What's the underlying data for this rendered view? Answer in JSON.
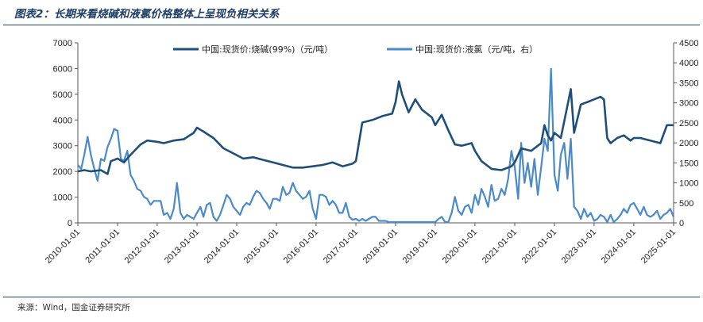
{
  "header": {
    "title": "图表2：长期来看烧碱和液氯价格整体上呈现负相关关系"
  },
  "footer": {
    "source": "来源：Wind，国金证券研究所"
  },
  "chart_data": {
    "type": "line",
    "title": "图表2：长期来看烧碱和液氯价格整体上呈现负相关关系",
    "xlabel": "",
    "ylabel": "",
    "xlim": [
      "2010-01-01",
      "2025-01-01"
    ],
    "x_ticks": [
      "2010-01-01",
      "2011-01-01",
      "2012-01-01",
      "2013-01-01",
      "2014-01-01",
      "2015-01-01",
      "2016-01-01",
      "2017-01-01",
      "2018-01-01",
      "2019-01-01",
      "2020-01-01",
      "2021-01-01",
      "2022-01-01",
      "2023-01-01",
      "2024-01-01",
      "2025-01-01"
    ],
    "y_left": {
      "lim": [
        0,
        7000
      ],
      "ticks": [
        0,
        1000,
        2000,
        3000,
        4000,
        5000,
        6000,
        7000
      ]
    },
    "y_right": {
      "lim": [
        0,
        4500
      ],
      "ticks": [
        0,
        500,
        1000,
        1500,
        2000,
        2500,
        3000,
        3500,
        4000,
        4500
      ]
    },
    "grid": false,
    "legend": "top",
    "colors": {
      "caustic": "#1f4e79",
      "chlorine": "#4a8ac9",
      "frame": "#1f3f66"
    },
    "series": [
      {
        "name": "中国:现货价:烧碱(99%)（元/吨）",
        "axis": "left",
        "points": [
          [
            "2010-01-01",
            2000
          ],
          [
            "2010-03-01",
            2050
          ],
          [
            "2010-05-01",
            2000
          ],
          [
            "2010-08-01",
            2050
          ],
          [
            "2010-10-01",
            1900
          ],
          [
            "2010-11-01",
            2400
          ],
          [
            "2011-01-01",
            2500
          ],
          [
            "2011-03-01",
            2350
          ],
          [
            "2011-05-01",
            2650
          ],
          [
            "2011-08-01",
            3050
          ],
          [
            "2011-10-01",
            3200
          ],
          [
            "2012-01-01",
            3150
          ],
          [
            "2012-03-01",
            3100
          ],
          [
            "2012-06-01",
            3200
          ],
          [
            "2012-09-01",
            3250
          ],
          [
            "2012-12-01",
            3500
          ],
          [
            "2013-01-01",
            3700
          ],
          [
            "2013-03-01",
            3550
          ],
          [
            "2013-06-01",
            3300
          ],
          [
            "2013-09-01",
            2900
          ],
          [
            "2013-12-01",
            2700
          ],
          [
            "2014-03-01",
            2500
          ],
          [
            "2014-06-01",
            2550
          ],
          [
            "2014-09-01",
            2450
          ],
          [
            "2014-12-01",
            2350
          ],
          [
            "2015-03-01",
            2250
          ],
          [
            "2015-06-01",
            2150
          ],
          [
            "2015-09-01",
            2150
          ],
          [
            "2015-12-01",
            2200
          ],
          [
            "2016-03-01",
            2250
          ],
          [
            "2016-06-01",
            2350
          ],
          [
            "2016-09-01",
            2200
          ],
          [
            "2016-12-01",
            2300
          ],
          [
            "2017-01-01",
            2400
          ],
          [
            "2017-03-01",
            3900
          ],
          [
            "2017-06-01",
            4000
          ],
          [
            "2017-09-01",
            4150
          ],
          [
            "2017-12-01",
            4250
          ],
          [
            "2018-01-01",
            4700
          ],
          [
            "2018-02-01",
            5500
          ],
          [
            "2018-03-01",
            5000
          ],
          [
            "2018-05-01",
            4300
          ],
          [
            "2018-07-01",
            4800
          ],
          [
            "2018-09-01",
            4400
          ],
          [
            "2018-12-01",
            4100
          ],
          [
            "2019-01-01",
            3800
          ],
          [
            "2019-03-01",
            4200
          ],
          [
            "2019-05-01",
            3600
          ],
          [
            "2019-07-01",
            3050
          ],
          [
            "2019-09-01",
            3000
          ],
          [
            "2019-12-01",
            3100
          ],
          [
            "2020-01-01",
            2800
          ],
          [
            "2020-03-01",
            2400
          ],
          [
            "2020-06-01",
            2100
          ],
          [
            "2020-09-01",
            2050
          ],
          [
            "2020-12-01",
            2200
          ],
          [
            "2021-01-01",
            2350
          ],
          [
            "2021-03-01",
            2900
          ],
          [
            "2021-06-01",
            2800
          ],
          [
            "2021-09-01",
            3100
          ],
          [
            "2021-10-01",
            3800
          ],
          [
            "2021-11-01",
            3400
          ],
          [
            "2021-12-01",
            3200
          ],
          [
            "2022-01-01",
            3500
          ],
          [
            "2022-03-01",
            3300
          ],
          [
            "2022-06-01",
            5200
          ],
          [
            "2022-07-01",
            3500
          ],
          [
            "2022-09-01",
            4600
          ],
          [
            "2022-11-01",
            4700
          ],
          [
            "2023-01-01",
            4800
          ],
          [
            "2023-03-01",
            4900
          ],
          [
            "2023-04-01",
            4800
          ],
          [
            "2023-05-01",
            3300
          ],
          [
            "2023-06-01",
            3100
          ],
          [
            "2023-08-01",
            3300
          ],
          [
            "2023-10-01",
            3400
          ],
          [
            "2023-12-01",
            3200
          ],
          [
            "2024-01-01",
            3300
          ],
          [
            "2024-03-01",
            3300
          ],
          [
            "2024-06-01",
            3200
          ],
          [
            "2024-09-01",
            3100
          ],
          [
            "2024-11-01",
            3800
          ],
          [
            "2025-01-01",
            3800
          ]
        ]
      },
      {
        "name": "中国:现货价:液氯（元/吨，右）",
        "axis": "right",
        "points": [
          [
            "2010-01-01",
            1450
          ],
          [
            "2010-02-01",
            1350
          ],
          [
            "2010-03-01",
            1700
          ],
          [
            "2010-04-01",
            2150
          ],
          [
            "2010-05-01",
            1700
          ],
          [
            "2010-06-01",
            1350
          ],
          [
            "2010-07-01",
            1050
          ],
          [
            "2010-08-01",
            1600
          ],
          [
            "2010-09-01",
            1550
          ],
          [
            "2010-10-01",
            1900
          ],
          [
            "2010-11-01",
            2100
          ],
          [
            "2010-12-01",
            2350
          ],
          [
            "2011-01-01",
            2300
          ],
          [
            "2011-02-01",
            1600
          ],
          [
            "2011-03-01",
            1550
          ],
          [
            "2011-04-01",
            1800
          ],
          [
            "2011-05-01",
            1200
          ],
          [
            "2011-06-01",
            1050
          ],
          [
            "2011-07-01",
            850
          ],
          [
            "2011-08-01",
            800
          ],
          [
            "2011-09-01",
            650
          ],
          [
            "2011-10-01",
            600
          ],
          [
            "2011-11-01",
            450
          ],
          [
            "2011-12-01",
            550
          ],
          [
            "2012-01-01",
            550
          ],
          [
            "2012-02-01",
            550
          ],
          [
            "2012-03-01",
            200
          ],
          [
            "2012-04-01",
            250
          ],
          [
            "2012-05-01",
            100
          ],
          [
            "2012-06-01",
            350
          ],
          [
            "2012-07-01",
            1000
          ],
          [
            "2012-08-01",
            250
          ],
          [
            "2012-09-01",
            100
          ],
          [
            "2012-10-01",
            200
          ],
          [
            "2012-11-01",
            150
          ],
          [
            "2012-12-01",
            100
          ],
          [
            "2013-01-01",
            250
          ],
          [
            "2013-02-01",
            400
          ],
          [
            "2013-03-01",
            150
          ],
          [
            "2013-04-01",
            450
          ],
          [
            "2013-05-01",
            500
          ],
          [
            "2013-06-01",
            150
          ],
          [
            "2013-07-01",
            50
          ],
          [
            "2013-08-01",
            200
          ],
          [
            "2013-09-01",
            450
          ],
          [
            "2013-10-01",
            700
          ],
          [
            "2013-11-01",
            600
          ],
          [
            "2013-12-01",
            400
          ],
          [
            "2014-01-01",
            300
          ],
          [
            "2014-02-01",
            200
          ],
          [
            "2014-03-01",
            400
          ],
          [
            "2014-04-01",
            500
          ],
          [
            "2014-05-01",
            450
          ],
          [
            "2014-06-01",
            650
          ],
          [
            "2014-07-01",
            800
          ],
          [
            "2014-08-01",
            750
          ],
          [
            "2014-09-01",
            600
          ],
          [
            "2014-10-01",
            500
          ],
          [
            "2014-11-01",
            350
          ],
          [
            "2014-12-01",
            600
          ],
          [
            "2015-01-01",
            600
          ],
          [
            "2015-02-01",
            550
          ],
          [
            "2015-03-01",
            900
          ],
          [
            "2015-04-01",
            700
          ],
          [
            "2015-05-01",
            750
          ],
          [
            "2015-06-01",
            1000
          ],
          [
            "2015-07-01",
            800
          ],
          [
            "2015-08-01",
            700
          ],
          [
            "2015-09-01",
            600
          ],
          [
            "2015-10-01",
            650
          ],
          [
            "2015-11-01",
            800
          ],
          [
            "2015-12-01",
            350
          ],
          [
            "2016-01-01",
            100
          ],
          [
            "2016-02-01",
            700
          ],
          [
            "2016-03-01",
            700
          ],
          [
            "2016-04-01",
            650
          ],
          [
            "2016-05-01",
            450
          ],
          [
            "2016-06-01",
            550
          ],
          [
            "2016-07-01",
            450
          ],
          [
            "2016-08-01",
            250
          ],
          [
            "2016-09-01",
            250
          ],
          [
            "2016-10-01",
            500
          ],
          [
            "2016-11-01",
            150
          ],
          [
            "2016-12-01",
            80
          ],
          [
            "2017-01-01",
            100
          ],
          [
            "2017-02-01",
            50
          ],
          [
            "2017-03-01",
            100
          ],
          [
            "2017-04-01",
            50
          ],
          [
            "2017-05-01",
            100
          ],
          [
            "2017-06-01",
            150
          ],
          [
            "2017-07-01",
            150
          ],
          [
            "2017-08-01",
            50
          ],
          [
            "2017-09-01",
            50
          ],
          [
            "2017-10-01",
            50
          ],
          [
            "2017-11-01",
            20
          ],
          [
            "2017-12-01",
            20
          ],
          [
            "2018-01-01",
            20
          ],
          [
            "2018-03-01",
            20
          ],
          [
            "2018-06-01",
            20
          ],
          [
            "2018-09-01",
            20
          ],
          [
            "2018-12-01",
            20
          ],
          [
            "2019-01-01",
            20
          ],
          [
            "2019-02-01",
            100
          ],
          [
            "2019-03-01",
            150
          ],
          [
            "2019-04-01",
            20
          ],
          [
            "2019-05-01",
            20
          ],
          [
            "2019-06-01",
            250
          ],
          [
            "2019-07-01",
            650
          ],
          [
            "2019-08-01",
            300
          ],
          [
            "2019-09-01",
            200
          ],
          [
            "2019-10-01",
            400
          ],
          [
            "2019-11-01",
            450
          ],
          [
            "2019-12-01",
            250
          ],
          [
            "2020-01-01",
            700
          ],
          [
            "2020-02-01",
            450
          ],
          [
            "2020-03-01",
            850
          ],
          [
            "2020-04-01",
            650
          ],
          [
            "2020-05-01",
            400
          ],
          [
            "2020-06-01",
            950
          ],
          [
            "2020-07-01",
            550
          ],
          [
            "2020-08-01",
            600
          ],
          [
            "2020-09-01",
            850
          ],
          [
            "2020-10-01",
            700
          ],
          [
            "2020-11-01",
            1100
          ],
          [
            "2020-12-01",
            1800
          ],
          [
            "2021-01-01",
            1400
          ],
          [
            "2021-02-01",
            600
          ],
          [
            "2021-03-01",
            2000
          ],
          [
            "2021-04-01",
            1000
          ],
          [
            "2021-05-01",
            1500
          ],
          [
            "2021-06-01",
            900
          ],
          [
            "2021-07-01",
            1600
          ],
          [
            "2021-08-01",
            700
          ],
          [
            "2021-09-01",
            1400
          ],
          [
            "2021-10-01",
            2100
          ],
          [
            "2021-11-01",
            1800
          ],
          [
            "2021-12-01",
            3850
          ],
          [
            "2022-01-01",
            1200
          ],
          [
            "2022-02-01",
            800
          ],
          [
            "2022-03-01",
            1700
          ],
          [
            "2022-04-01",
            2000
          ],
          [
            "2022-05-01",
            1100
          ],
          [
            "2022-06-01",
            2100
          ],
          [
            "2022-07-01",
            400
          ],
          [
            "2022-08-01",
            300
          ],
          [
            "2022-09-01",
            100
          ],
          [
            "2022-10-01",
            350
          ],
          [
            "2022-11-01",
            150
          ],
          [
            "2022-12-01",
            250
          ],
          [
            "2023-01-01",
            50
          ],
          [
            "2023-02-01",
            100
          ],
          [
            "2023-03-01",
            200
          ],
          [
            "2023-04-01",
            150
          ],
          [
            "2023-05-01",
            20
          ],
          [
            "2023-06-01",
            200
          ],
          [
            "2023-07-01",
            20
          ],
          [
            "2023-08-01",
            100
          ],
          [
            "2023-09-01",
            200
          ],
          [
            "2023-10-01",
            350
          ],
          [
            "2023-11-01",
            250
          ],
          [
            "2023-12-01",
            450
          ],
          [
            "2024-01-01",
            500
          ],
          [
            "2024-02-01",
            350
          ],
          [
            "2024-03-01",
            200
          ],
          [
            "2024-04-01",
            400
          ],
          [
            "2024-05-01",
            200
          ],
          [
            "2024-06-01",
            150
          ],
          [
            "2024-07-01",
            200
          ],
          [
            "2024-08-01",
            300
          ],
          [
            "2024-09-01",
            100
          ],
          [
            "2024-10-01",
            200
          ],
          [
            "2024-11-01",
            250
          ],
          [
            "2024-12-01",
            350
          ],
          [
            "2025-01-01",
            150
          ]
        ]
      }
    ]
  }
}
